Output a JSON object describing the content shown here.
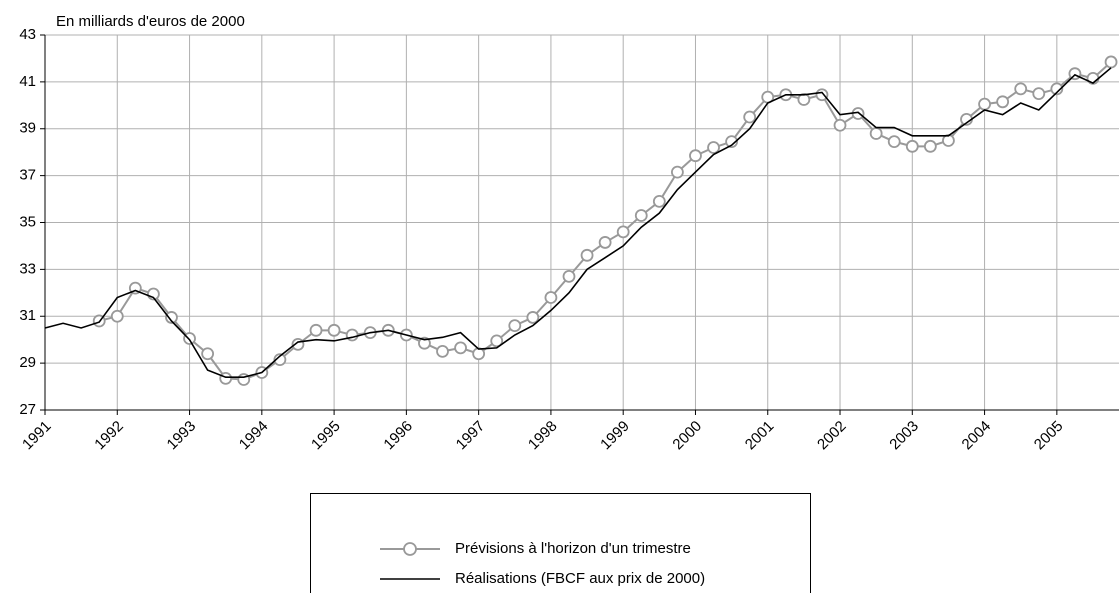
{
  "chart_data": {
    "type": "line",
    "y_label": "En milliards d'euros de 2000",
    "x": [
      1991,
      1991.25,
      1991.5,
      1991.75,
      1992,
      1992.25,
      1992.5,
      1992.75,
      1993,
      1993.25,
      1993.5,
      1993.75,
      1994,
      1994.25,
      1994.5,
      1994.75,
      1995,
      1995.25,
      1995.5,
      1995.75,
      1996,
      1996.25,
      1996.5,
      1996.75,
      1997,
      1997.25,
      1997.5,
      1997.75,
      1998,
      1998.25,
      1998.5,
      1998.75,
      1999,
      1999.25,
      1999.5,
      1999.75,
      2000,
      2000.25,
      2000.5,
      2000.75,
      2001,
      2001.25,
      2001.5,
      2001.75,
      2002,
      2002.25,
      2002.5,
      2002.75,
      2003,
      2003.25,
      2003.5,
      2003.75,
      2004,
      2004.25,
      2004.5,
      2004.75,
      2005,
      2005.25,
      2005.5,
      2005.75
    ],
    "series": [
      {
        "name": "Prévisions à l'horizon d'un trimestre",
        "color": "#999999",
        "marker": "circle",
        "values": [
          null,
          null,
          null,
          30.8,
          31.0,
          32.2,
          31.95,
          30.95,
          30.05,
          29.4,
          28.35,
          28.3,
          28.6,
          29.15,
          29.8,
          30.4,
          30.4,
          30.2,
          30.3,
          30.4,
          30.2,
          29.85,
          29.5,
          29.65,
          29.4,
          29.95,
          30.6,
          30.95,
          31.8,
          32.7,
          33.6,
          34.15,
          34.6,
          35.3,
          35.9,
          37.15,
          37.85,
          38.2,
          38.45,
          39.5,
          40.35,
          40.45,
          40.25,
          40.45,
          39.15,
          39.65,
          38.8,
          38.45,
          38.25,
          38.25,
          38.5,
          39.4,
          40.05,
          40.15,
          40.7,
          40.5,
          40.7,
          41.35,
          41.15,
          41.85
        ]
      },
      {
        "name": "Réalisations (FBCF aux prix de 2000)",
        "color": "#000000",
        "values": [
          30.5,
          30.7,
          30.5,
          30.75,
          31.8,
          32.1,
          31.8,
          30.8,
          30.0,
          28.7,
          28.4,
          28.4,
          28.6,
          29.3,
          29.9,
          30.0,
          29.95,
          30.1,
          30.3,
          30.4,
          30.2,
          30.0,
          30.1,
          30.3,
          29.6,
          29.65,
          30.2,
          30.6,
          31.25,
          32.0,
          33.0,
          33.5,
          34.0,
          34.8,
          35.4,
          36.4,
          37.15,
          37.9,
          38.3,
          39.0,
          40.1,
          40.45,
          40.45,
          40.55,
          39.6,
          39.7,
          39.05,
          39.05,
          38.7,
          38.7,
          38.7,
          39.25,
          39.8,
          39.6,
          40.1,
          39.8,
          40.55,
          41.3,
          40.95,
          41.6
        ]
      }
    ],
    "xlim": [
      1991,
      2005.86
    ],
    "ylim": [
      27,
      43
    ],
    "xticks": [
      1991,
      1992,
      1993,
      1994,
      1995,
      1996,
      1997,
      1998,
      1999,
      2000,
      2001,
      2002,
      2003,
      2004,
      2005
    ],
    "yticks": [
      27,
      29,
      31,
      33,
      35,
      37,
      39,
      41,
      43
    ],
    "grid": true,
    "legend": "bottom"
  }
}
